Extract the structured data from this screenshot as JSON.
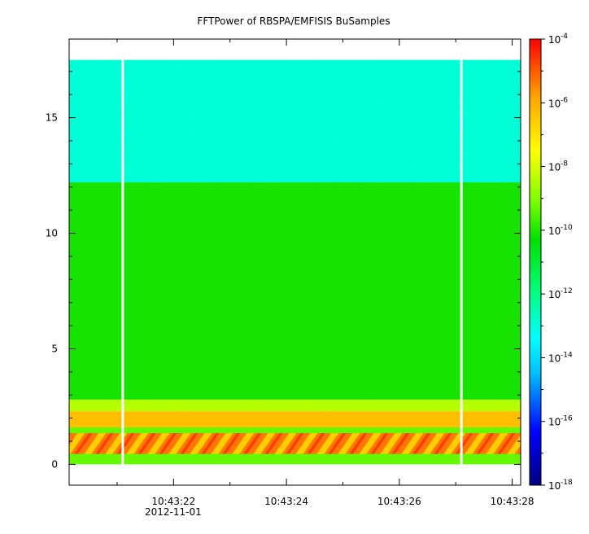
{
  "chart_data": {
    "type": "heatmap",
    "title": "FFTPower of RBSPA/EMFISIS  BuSamples",
    "xlabel": "",
    "ylabel": "",
    "x_axis": {
      "type": "time",
      "date_label": "2012-11-01",
      "range": [
        "10:43:20.15",
        "10:43:28.15"
      ],
      "ticks": [
        "10:43:22",
        "10:43:24",
        "10:43:26",
        "10:43:28"
      ]
    },
    "y_axis": {
      "range": [
        -0.9,
        18.4
      ],
      "ticks": [
        0,
        5,
        10,
        15
      ],
      "tick_labels": [
        "0",
        "5",
        "10",
        "15"
      ]
    },
    "colorbar": {
      "scale": "log",
      "range": [
        1e-18,
        0.0001
      ],
      "tick_base": "10",
      "tick_exponents": [
        "-4",
        "-6",
        "-8",
        "-10",
        "-12",
        "-14",
        "-16",
        "-18"
      ],
      "colormap": [
        "#00007f",
        "#0000ff",
        "#00bfff",
        "#00ffff",
        "#00ff80",
        "#00e000",
        "#80ff00",
        "#ffff00",
        "#ffa500",
        "#ff0000"
      ]
    },
    "data_gaps": [
      "10:43:21.1",
      "10:43:27.1"
    ],
    "bands": [
      {
        "y_range": [
          12.2,
          17.5
        ],
        "level": "1e-13"
      },
      {
        "y_range": [
          2.8,
          12.2
        ],
        "level": "1e-10"
      },
      {
        "y_range": [
          2.3,
          2.8
        ],
        "level": "1e-8"
      },
      {
        "y_range": [
          1.6,
          2.3
        ],
        "level": "1e-6"
      },
      {
        "y_range": [
          1.3,
          1.6
        ],
        "level": "1e-9"
      },
      {
        "y_range": [
          0.5,
          1.3
        ],
        "level": "1e-6"
      },
      {
        "y_range": [
          0.0,
          0.5
        ],
        "level": "1e-9"
      }
    ]
  }
}
